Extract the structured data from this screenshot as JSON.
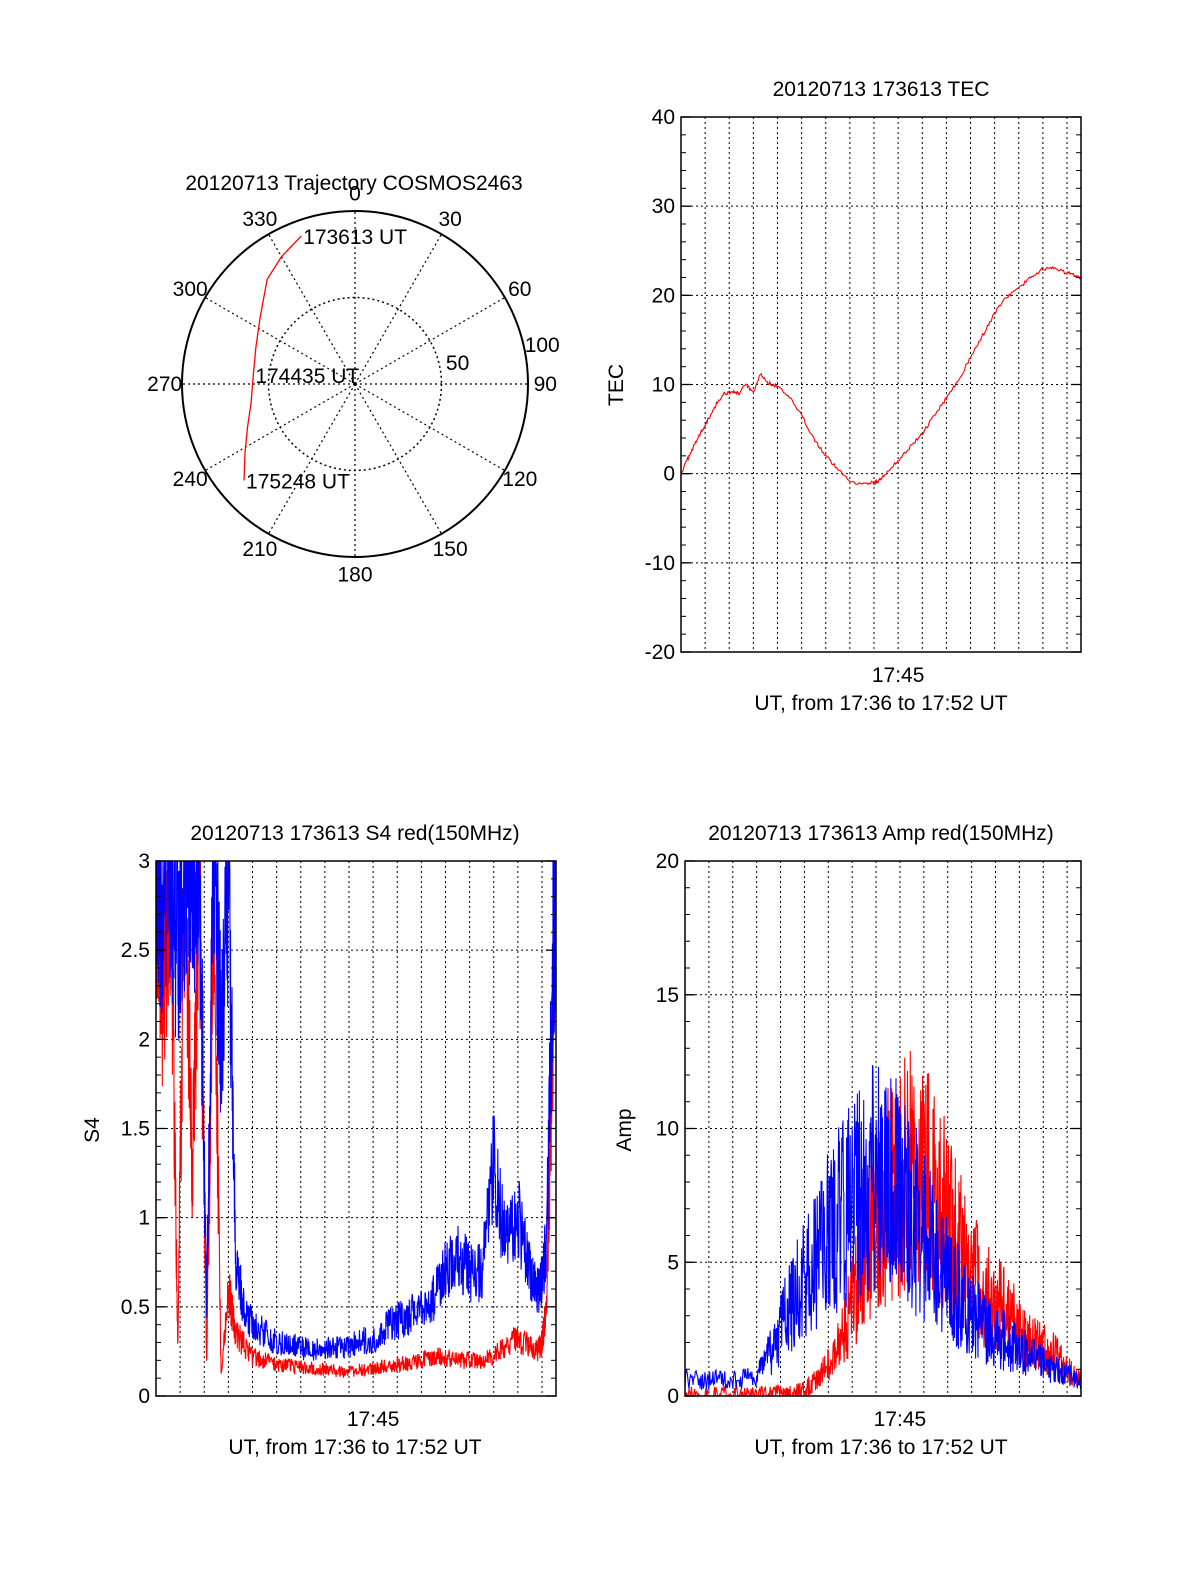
{
  "colors": {
    "red": "#ff0000",
    "blue": "#0000ff",
    "axis": "#000000",
    "background": "#ffffff"
  },
  "chart_data": [
    {
      "type": "polar",
      "title": "20120713 Trajectory COSMOS2463",
      "azimuth_labels": [
        "0",
        "30",
        "60",
        "90",
        "120",
        "150",
        "180",
        "210",
        "240",
        "270",
        "300",
        "330"
      ],
      "radial_labels": [
        "50",
        "100"
      ],
      "radial_range": [
        0,
        100
      ],
      "grid": true,
      "series": [
        {
          "color": "red",
          "points": [
            [
              340,
              91
            ],
            [
              330,
              85
            ],
            [
              320,
              79
            ],
            [
              305,
              67
            ],
            [
              290,
              61
            ],
            [
              275,
              59
            ],
            [
              260,
              61
            ],
            [
              248,
              67
            ],
            [
              238,
              75
            ],
            [
              229,
              85
            ]
          ]
        }
      ],
      "annotations": [
        {
          "text": "173613 UT",
          "az": 340,
          "r": 91
        },
        {
          "text": "174435 UT",
          "az": 275,
          "r": 59
        },
        {
          "text": "175248 UT",
          "az": 229,
          "r": 85
        }
      ]
    },
    {
      "type": "line",
      "title": "20120713 173613 TEC",
      "xlabel": "UT, from 17:36 to 17:52 UT",
      "ylabel": "TEC",
      "x_tick_labels": [
        {
          "label": "17:45",
          "minute": 9.0
        }
      ],
      "xlim_minutes": [
        0,
        16.58
      ],
      "ylim": [
        -20,
        40
      ],
      "y_ticks": [
        -20,
        -10,
        0,
        10,
        20,
        30,
        40
      ],
      "grid": true,
      "series": [
        {
          "color": "red",
          "x": [
            0.0,
            0.3,
            0.6,
            0.9,
            1.2,
            1.5,
            1.8,
            2.1,
            2.4,
            2.7,
            3.0,
            3.3,
            3.6,
            4.0,
            4.5,
            5.0,
            5.5,
            6.0,
            6.5,
            7.0,
            7.5,
            8.0,
            8.2,
            8.5,
            9.0,
            9.5,
            10.0,
            10.5,
            11.0,
            11.5,
            12.0,
            12.5,
            13.0,
            13.5,
            14.0,
            14.5,
            15.0,
            15.5,
            16.0,
            16.3,
            16.58
          ],
          "y": [
            0.0,
            1.8,
            3.5,
            5.0,
            6.5,
            8.0,
            9.0,
            9.2,
            9.0,
            10.0,
            9.0,
            11.2,
            10.2,
            9.8,
            8.5,
            6.5,
            4.0,
            2.0,
            0.5,
            -0.8,
            -1.2,
            -1.0,
            -0.8,
            0.0,
            1.5,
            3.0,
            4.5,
            6.5,
            8.5,
            10.5,
            13.0,
            15.5,
            18.0,
            19.8,
            20.8,
            22.0,
            23.0,
            23.0,
            22.5,
            22.3,
            22.0
          ]
        }
      ]
    },
    {
      "type": "line",
      "title": "20120713 173613 S4 red(150MHz)",
      "xlabel": "UT, from 17:36 to 17:52 UT",
      "ylabel": "S4",
      "x_tick_labels": [
        {
          "label": "17:45",
          "minute": 9.0
        }
      ],
      "xlim_minutes": [
        0,
        16.58
      ],
      "ylim": [
        0,
        3
      ],
      "y_ticks": [
        0,
        0.5,
        1,
        1.5,
        2,
        2.5,
        3
      ],
      "y_tick_labels": [
        "0",
        "0.5",
        "1",
        "1.5",
        "2",
        "2.5",
        "3"
      ],
      "grid": true,
      "series": [
        {
          "color": "red",
          "x": [
            0.0,
            0.3,
            0.6,
            0.9,
            1.2,
            1.5,
            1.8,
            2.1,
            2.4,
            2.7,
            3.0,
            3.3,
            3.6,
            4.0,
            4.5,
            5.0,
            5.5,
            6.0,
            6.5,
            7.0,
            7.5,
            8.0,
            8.5,
            9.0,
            9.5,
            10.0,
            10.5,
            11.0,
            11.5,
            12.0,
            12.5,
            13.0,
            13.5,
            14.0,
            14.5,
            15.0,
            15.5,
            15.8,
            16.0,
            16.2,
            16.4,
            16.58
          ],
          "y": [
            3.0,
            2.2,
            3.0,
            0.3,
            3.0,
            1.2,
            3.0,
            0.2,
            2.8,
            0.1,
            0.6,
            0.35,
            0.3,
            0.22,
            0.2,
            0.18,
            0.17,
            0.16,
            0.16,
            0.15,
            0.14,
            0.14,
            0.15,
            0.15,
            0.17,
            0.18,
            0.18,
            0.2,
            0.22,
            0.22,
            0.2,
            0.2,
            0.19,
            0.23,
            0.28,
            0.32,
            0.28,
            0.25,
            0.3,
            0.5,
            1.8,
            3.0
          ]
        },
        {
          "color": "blue",
          "x": [
            0.0,
            0.3,
            0.6,
            0.9,
            1.2,
            1.5,
            1.8,
            2.1,
            2.4,
            2.7,
            3.0,
            3.3,
            3.6,
            4.0,
            4.5,
            5.0,
            5.5,
            6.0,
            6.5,
            7.0,
            7.5,
            8.0,
            8.5,
            9.0,
            9.5,
            10.0,
            10.5,
            11.0,
            11.5,
            12.0,
            12.5,
            13.0,
            13.5,
            14.0,
            14.5,
            15.0,
            15.5,
            15.8,
            16.0,
            16.2,
            16.4,
            16.58
          ],
          "y": [
            3.0,
            2.8,
            3.0,
            2.5,
            3.0,
            2.9,
            3.0,
            0.5,
            3.0,
            2.0,
            3.0,
            0.8,
            0.5,
            0.4,
            0.35,
            0.3,
            0.3,
            0.27,
            0.26,
            0.26,
            0.27,
            0.28,
            0.32,
            0.3,
            0.38,
            0.42,
            0.45,
            0.5,
            0.55,
            0.72,
            0.78,
            0.7,
            0.68,
            1.3,
            0.85,
            1.0,
            0.7,
            0.6,
            0.65,
            0.9,
            2.2,
            3.0
          ]
        }
      ]
    },
    {
      "type": "line",
      "title": "20120713 173613 Amp red(150MHz)",
      "xlabel": "UT, from 17:36 to 17:52 UT",
      "ylabel": "Amp",
      "x_tick_labels": [
        {
          "label": "17:45",
          "minute": 9.0
        }
      ],
      "xlim_minutes": [
        0,
        16.58
      ],
      "ylim": [
        0,
        20
      ],
      "y_ticks": [
        0,
        5,
        10,
        15,
        20
      ],
      "grid": true,
      "series": [
        {
          "color": "red",
          "x": [
            0.0,
            1.0,
            2.0,
            3.0,
            4.0,
            4.5,
            5.0,
            5.5,
            6.0,
            6.5,
            7.0,
            7.5,
            8.0,
            8.5,
            9.0,
            9.5,
            10.0,
            10.5,
            11.0,
            11.5,
            12.0,
            12.5,
            13.0,
            13.5,
            14.0,
            14.5,
            15.0,
            15.5,
            16.0,
            16.58
          ],
          "y": [
            0.0,
            0.0,
            0.0,
            0.0,
            0.0,
            0.0,
            0.2,
            0.6,
            1.2,
            2.0,
            3.5,
            5.0,
            6.5,
            7.5,
            8.0,
            8.5,
            8.0,
            7.5,
            6.5,
            5.5,
            4.5,
            4.0,
            3.5,
            3.0,
            2.5,
            2.0,
            1.8,
            1.5,
            1.0,
            0.5
          ]
        },
        {
          "color": "blue",
          "x": [
            0.0,
            1.0,
            2.0,
            3.0,
            3.5,
            4.0,
            4.5,
            5.0,
            5.5,
            6.0,
            6.5,
            7.0,
            7.5,
            8.0,
            8.5,
            9.0,
            9.5,
            10.0,
            10.5,
            11.0,
            11.5,
            12.0,
            12.5,
            13.0,
            13.5,
            14.0,
            14.5,
            15.0,
            15.5,
            16.0,
            16.58
          ],
          "y": [
            0.6,
            0.6,
            0.6,
            0.7,
            1.5,
            2.5,
            3.5,
            4.2,
            5.0,
            6.0,
            6.8,
            7.3,
            7.8,
            8.3,
            8.0,
            7.5,
            6.8,
            6.0,
            5.0,
            4.3,
            3.6,
            3.0,
            2.6,
            2.3,
            2.0,
            1.8,
            1.5,
            1.2,
            1.0,
            0.8,
            0.6
          ]
        }
      ]
    }
  ]
}
